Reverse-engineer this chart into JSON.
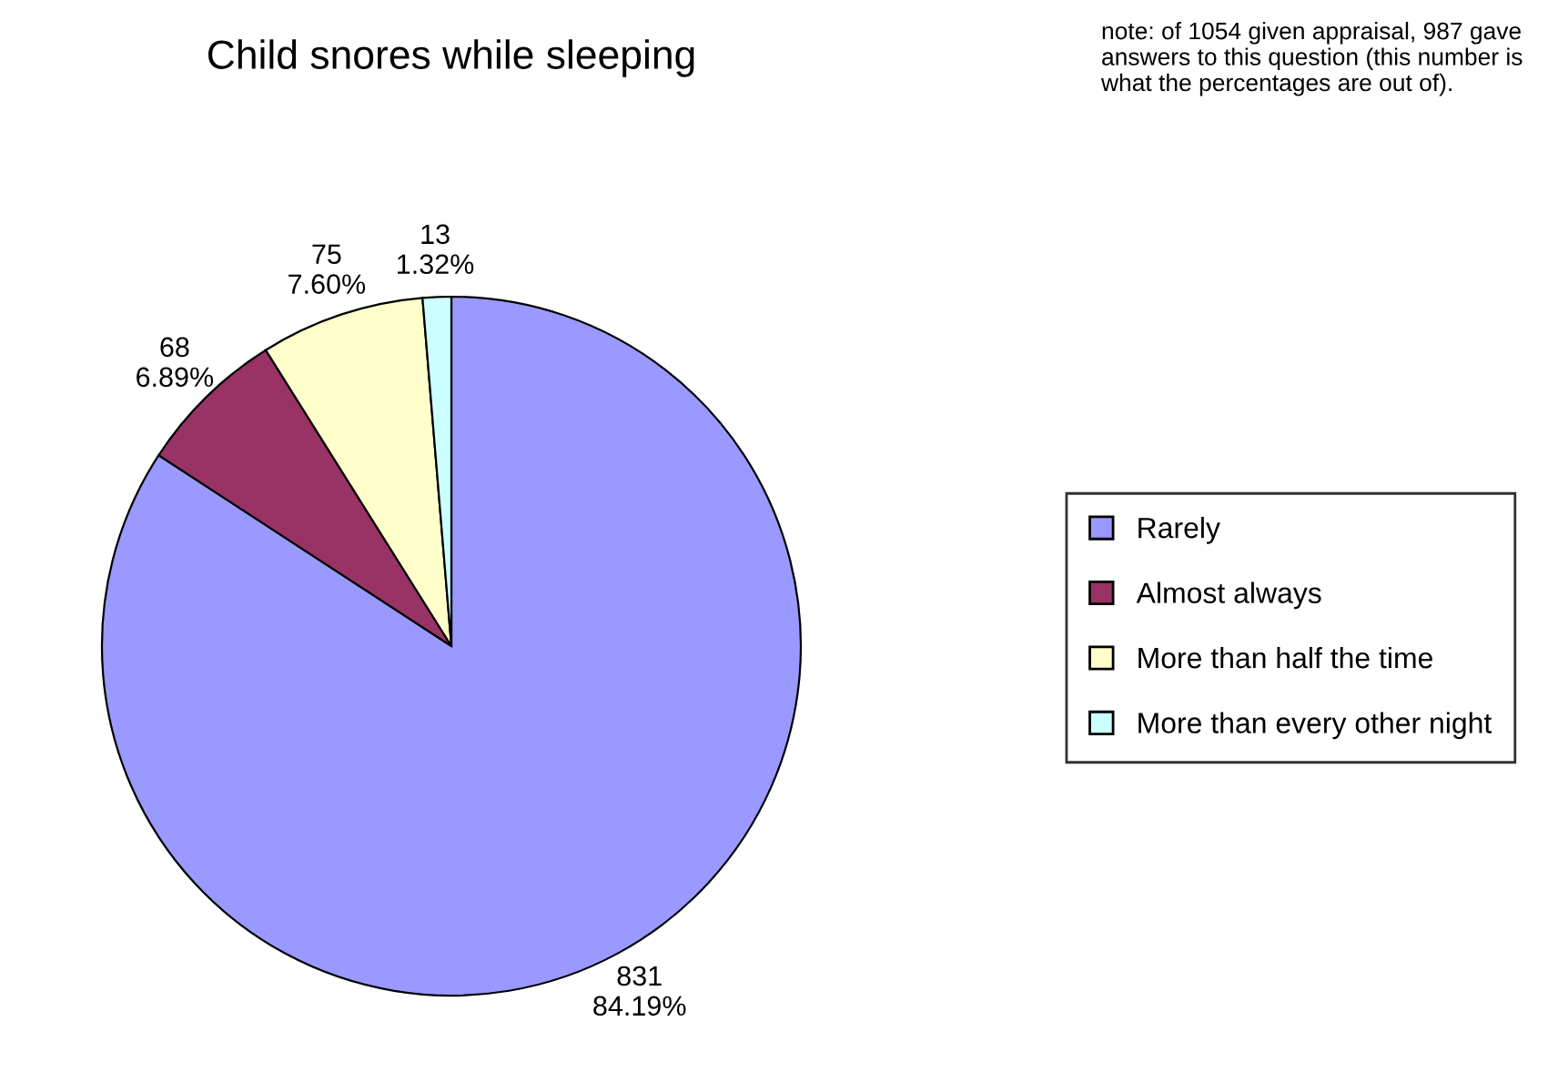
{
  "chart_data": {
    "type": "pie",
    "title": "Child snores while sleeping",
    "categories": [
      "Rarely",
      "Almost always",
      "More than half the time",
      "More than every other night"
    ],
    "values": [
      831,
      68,
      75,
      13
    ],
    "value_labels": [
      "831\n84.19%",
      "68\n6.89%",
      "75\n7.60%",
      "13\n1.32%"
    ],
    "colors": [
      "#9999ff",
      "#993366",
      "#ffffcc",
      "#ccffff"
    ],
    "legend": "right",
    "annotations": [
      "note: of 1054 given appraisal, 987 gave answers to this question (this number is what the percentages are out of)."
    ]
  }
}
